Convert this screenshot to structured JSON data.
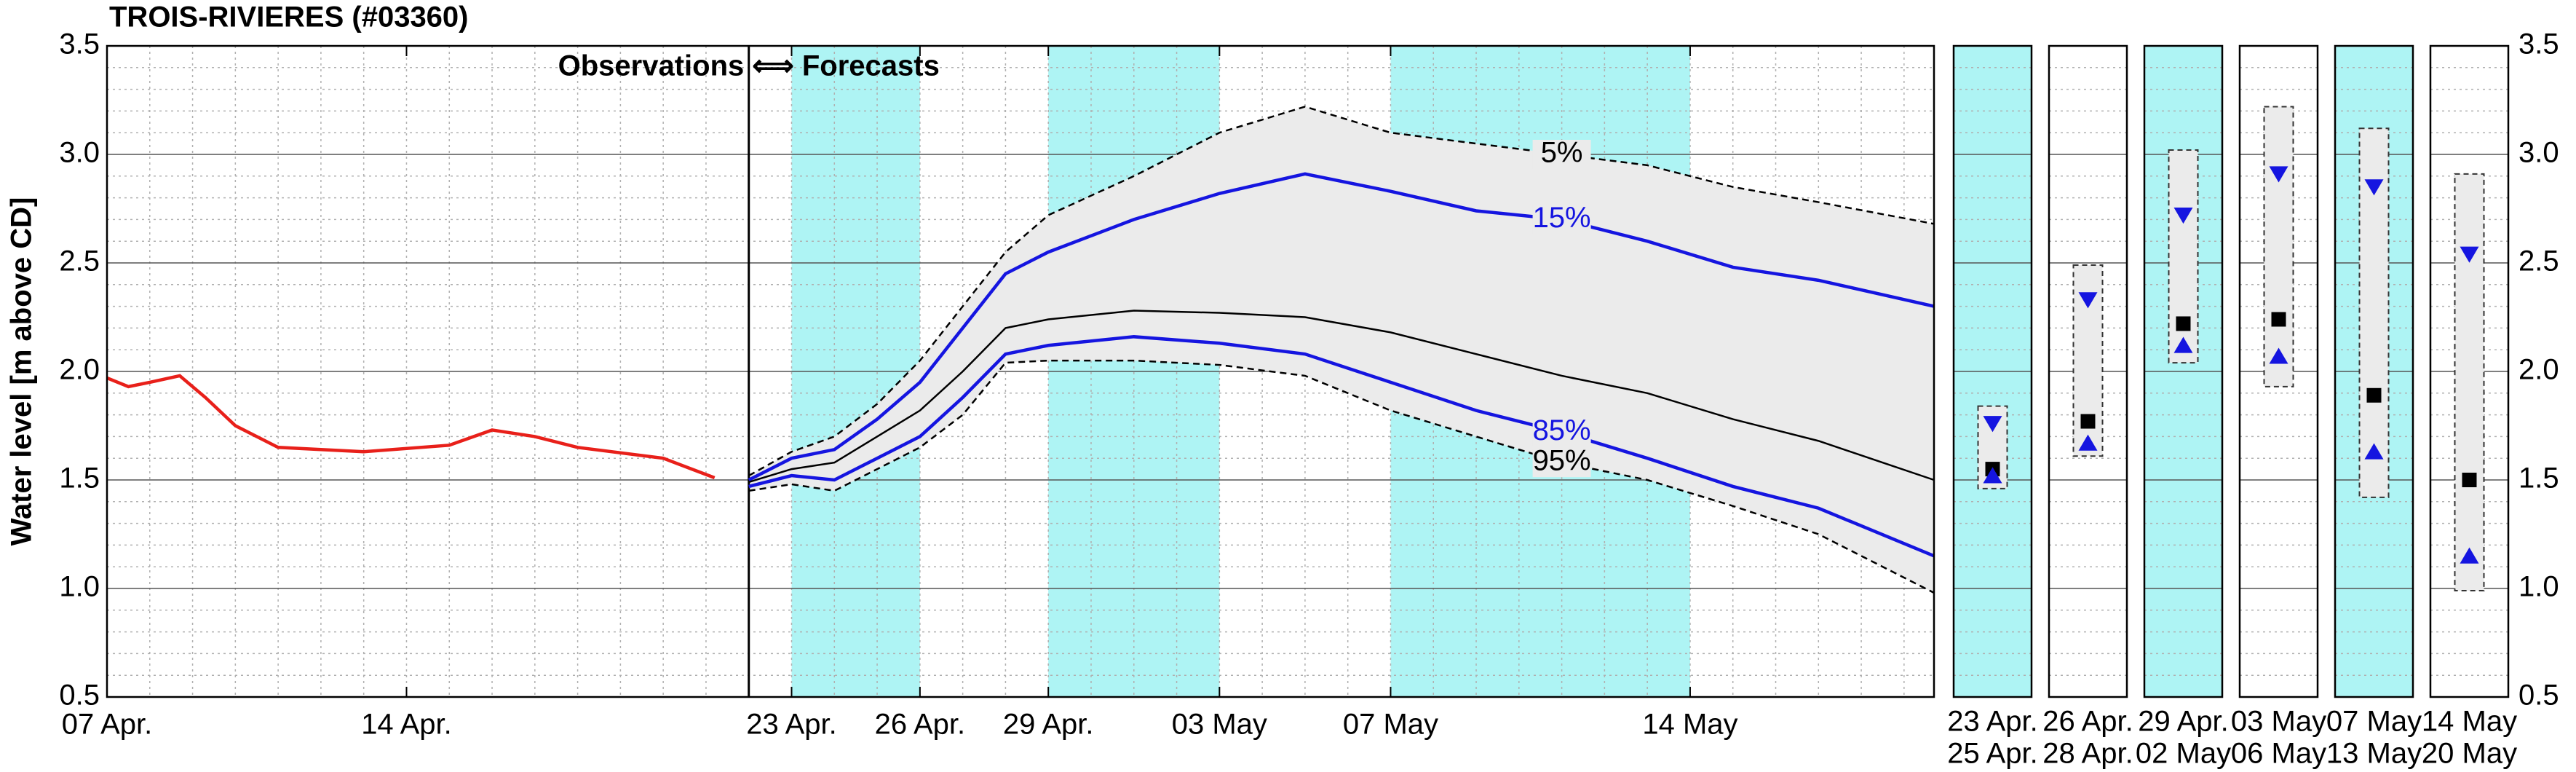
{
  "chart_data": [
    {
      "type": "line",
      "title": "TROIS-RIVIERES (#03360)",
      "ylabel": "Water level [m above CD]",
      "xlim": [
        0,
        42.7
      ],
      "ylim": [
        0.5,
        3.5
      ],
      "yticks": [
        0.5,
        {
          "value": 1,
          "label": "1.0"
        },
        1.5,
        {
          "value": 2,
          "label": "2.0"
        },
        2.5,
        {
          "value": 3,
          "label": "3.0"
        },
        3.5
      ],
      "xticks": [
        {
          "value": 0,
          "label": "07 Apr."
        },
        {
          "value": 7,
          "label": "14 Apr."
        },
        {
          "value": 16,
          "label": "23 Apr."
        },
        {
          "value": 19,
          "label": "26 Apr."
        },
        {
          "value": 22,
          "label": "29 Apr."
        },
        {
          "value": 26,
          "label": "03 May"
        },
        {
          "value": 30,
          "label": "07 May"
        },
        {
          "value": 37,
          "label": "14 May"
        }
      ],
      "grid": true,
      "shaded_ranges": [
        [
          16,
          19
        ],
        [
          22,
          26
        ],
        [
          30,
          37
        ]
      ],
      "shade_color": "#aef4f4",
      "band_color": "#ebebeb",
      "annotation": {
        "text": "Observations ⟺ Forecasts",
        "x": 15
      },
      "series": [
        {
          "color": "#e8201a",
          "x": [
            0,
            0.5,
            1,
            1.7,
            2.3,
            3,
            4,
            6,
            8,
            9,
            10,
            11,
            13,
            14.2
          ],
          "values": [
            1.97,
            1.93,
            1.95,
            1.98,
            1.88,
            1.75,
            1.65,
            1.63,
            1.66,
            1.73,
            1.7,
            1.65,
            1.6,
            1.51
          ]
        },
        {
          "name": "5%",
          "color": "#000000",
          "dash": true,
          "x": [
            15,
            16,
            17,
            18,
            19,
            20,
            21,
            22,
            24,
            26,
            28,
            30,
            32,
            34,
            36,
            38,
            40,
            42.7
          ],
          "values": [
            1.52,
            1.63,
            1.7,
            1.85,
            2.05,
            2.3,
            2.55,
            2.72,
            2.9,
            3.1,
            3.22,
            3.1,
            3.05,
            3.0,
            2.95,
            2.85,
            2.78,
            2.68
          ]
        },
        {
          "name": "15%",
          "color": "#1515e0",
          "x": [
            15,
            16,
            17,
            18,
            19,
            20,
            21,
            22,
            24,
            26,
            28,
            30,
            32,
            34,
            36,
            38,
            40,
            42.7
          ],
          "values": [
            1.5,
            1.6,
            1.64,
            1.78,
            1.95,
            2.2,
            2.45,
            2.55,
            2.7,
            2.82,
            2.91,
            2.83,
            2.74,
            2.7,
            2.6,
            2.48,
            2.42,
            2.3
          ]
        },
        {
          "color": "#000000",
          "x": [
            15,
            16,
            17,
            18,
            19,
            20,
            21,
            22,
            24,
            26,
            28,
            30,
            32,
            34,
            36,
            38,
            40,
            42.7
          ],
          "values": [
            1.49,
            1.55,
            1.58,
            1.7,
            1.82,
            2.0,
            2.2,
            2.24,
            2.28,
            2.27,
            2.25,
            2.18,
            2.08,
            1.98,
            1.9,
            1.78,
            1.68,
            1.5
          ]
        },
        {
          "name": "85%",
          "color": "#1515e0",
          "x": [
            15,
            16,
            17,
            18,
            19,
            20,
            21,
            22,
            24,
            26,
            28,
            30,
            32,
            34,
            36,
            38,
            40,
            42.7
          ],
          "values": [
            1.47,
            1.52,
            1.5,
            1.6,
            1.7,
            1.88,
            2.08,
            2.12,
            2.16,
            2.13,
            2.08,
            1.95,
            1.82,
            1.72,
            1.6,
            1.47,
            1.37,
            1.15
          ]
        },
        {
          "name": "95%",
          "color": "#000000",
          "dash": true,
          "x": [
            15,
            16,
            17,
            18,
            19,
            20,
            21,
            22,
            24,
            26,
            28,
            30,
            32,
            34,
            36,
            38,
            40,
            42.7
          ],
          "values": [
            1.45,
            1.48,
            1.45,
            1.55,
            1.65,
            1.8,
            2.04,
            2.05,
            2.05,
            2.03,
            1.98,
            1.82,
            1.7,
            1.58,
            1.5,
            1.38,
            1.25,
            0.98
          ]
        }
      ]
    },
    {
      "type": "range",
      "ylim": [
        0.5,
        3.5
      ],
      "yticks": [
        0.5,
        {
          "value": 1,
          "label": "1.0"
        },
        1.5,
        {
          "value": 2,
          "label": "2.0"
        },
        2.5,
        {
          "value": 3,
          "label": "3.0"
        },
        3.5
      ],
      "categories": [
        [
          "23 Apr.",
          "25 Apr."
        ],
        [
          "26 Apr.",
          "28 Apr."
        ],
        [
          "29 Apr.",
          "02 May"
        ],
        [
          "03 May",
          "06 May"
        ],
        [
          "07 May",
          "13 May"
        ],
        [
          "14 May",
          "20 May"
        ]
      ],
      "shaded": [
        true,
        false,
        true,
        false,
        true,
        false
      ],
      "shade_color": "#aef4f4",
      "box_color": "#ebebeb",
      "high": [
        1.84,
        2.49,
        3.02,
        3.22,
        3.12,
        2.91
      ],
      "low": [
        1.46,
        1.61,
        2.04,
        1.93,
        1.42,
        0.99
      ],
      "series": [
        {
          "marker": "triangle-down",
          "color": "#1515e0",
          "values": [
            1.76,
            2.33,
            2.72,
            2.91,
            2.85,
            2.54
          ]
        },
        {
          "marker": "square",
          "color": "#000000",
          "values": [
            1.55,
            1.77,
            2.22,
            2.24,
            1.89,
            1.5
          ]
        },
        {
          "marker": "triangle-up",
          "color": "#1515e0",
          "values": [
            1.52,
            1.67,
            2.12,
            2.07,
            1.63,
            1.15
          ]
        }
      ]
    }
  ]
}
